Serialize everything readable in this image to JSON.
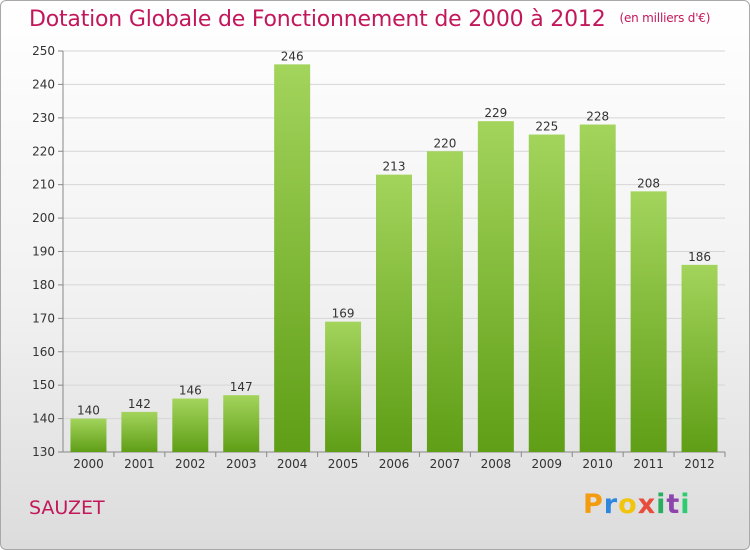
{
  "title": "Dotation Globale de Fonctionnement de 2000 à 2012",
  "unit": "(en milliers d'€)",
  "commune": "SAUZET",
  "logo": {
    "letters": [
      "P",
      "r",
      "o",
      "x",
      "i",
      "t",
      "i"
    ],
    "colors": [
      "#f39c12",
      "#2e86de",
      "#f1c40f",
      "#e74c3c",
      "#27ae60",
      "#8e44ad",
      "#2ecc71"
    ]
  },
  "colors": {
    "bar_top": "#a3d45c",
    "bar_bottom": "#5f9e16",
    "title": "#c2185b",
    "grid": "#d6d6d6"
  },
  "chart_data": {
    "type": "bar",
    "title": "Dotation Globale de Fonctionnement de 2000 à 2012",
    "categories": [
      "2000",
      "2001",
      "2002",
      "2003",
      "2004",
      "2005",
      "2006",
      "2007",
      "2008",
      "2009",
      "2010",
      "2011",
      "2012"
    ],
    "values": [
      140,
      142,
      146,
      147,
      246,
      169,
      213,
      220,
      229,
      225,
      228,
      208,
      186
    ],
    "ylim": [
      130,
      250
    ],
    "yticks": [
      130,
      140,
      150,
      160,
      170,
      180,
      190,
      200,
      210,
      220,
      230,
      240,
      250
    ],
    "grid": true,
    "xlabel": "",
    "ylabel": ""
  }
}
